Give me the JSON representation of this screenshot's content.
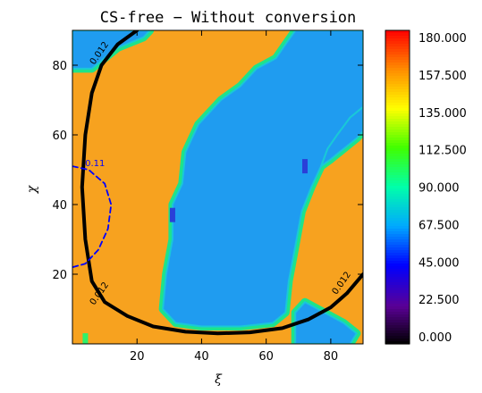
{
  "chart_data": {
    "type": "heatmap",
    "title": "CS-free − Without conversion",
    "xlabel": "ξ",
    "ylabel": "χ",
    "xlim": [
      0,
      90
    ],
    "ylim": [
      0,
      90
    ],
    "x_ticks": [
      {
        "value": 20,
        "label": "20"
      },
      {
        "value": 40,
        "label": "40"
      },
      {
        "value": 60,
        "label": "60"
      },
      {
        "value": 80,
        "label": "80"
      }
    ],
    "y_ticks": [
      {
        "value": 20,
        "label": "20"
      },
      {
        "value": 40,
        "label": "40"
      },
      {
        "value": 60,
        "label": "60"
      },
      {
        "value": 80,
        "label": "80"
      }
    ],
    "colorbar": {
      "min": 0,
      "max": 180,
      "labels": [
        "180.000",
        "157.500",
        "135.000",
        "112.500",
        "90.000",
        "67.500",
        "45.000",
        "22.500",
        "0.000"
      ],
      "colormap": "rainbow"
    },
    "field": {
      "background_value": 150,
      "regions": [
        {
          "name": "top-left-blue",
          "value": 60,
          "points": [
            [
              0,
              90
            ],
            [
              24,
              90
            ],
            [
              22,
              88
            ],
            [
              14,
              85
            ],
            [
              10,
              82
            ],
            [
              6,
              79
            ],
            [
              0,
              79
            ]
          ]
        },
        {
          "name": "central-blue",
          "value": 60,
          "points": [
            [
              69,
              90
            ],
            [
              66,
              86
            ],
            [
              63,
              82
            ],
            [
              57,
              79
            ],
            [
              52,
              74
            ],
            [
              46,
              70
            ],
            [
              39,
              63
            ],
            [
              35,
              55
            ],
            [
              34,
              46
            ],
            [
              31,
              40
            ],
            [
              31,
              30
            ],
            [
              29,
              20
            ],
            [
              28,
              10
            ],
            [
              32,
              6
            ],
            [
              40,
              5
            ],
            [
              52,
              5
            ],
            [
              62,
              6
            ],
            [
              66,
              9
            ],
            [
              67,
              18
            ],
            [
              69,
              28
            ],
            [
              71,
              38
            ],
            [
              74,
              45
            ],
            [
              77,
              51
            ],
            [
              79,
              56
            ],
            [
              82,
              60
            ],
            [
              86,
              65
            ],
            [
              90,
              68
            ],
            [
              90,
              90
            ]
          ]
        },
        {
          "name": "right-blue-patch",
          "value": 62,
          "points": [
            [
              90,
              68
            ],
            [
              86,
              65
            ],
            [
              82,
              60
            ],
            [
              79,
              56
            ],
            [
              77,
              51
            ],
            [
              80,
              53
            ],
            [
              84,
              56
            ],
            [
              88,
              59
            ],
            [
              90,
              61
            ]
          ]
        },
        {
          "name": "bottom-right-blue",
          "value": 60,
          "points": [
            [
              69,
              0
            ],
            [
              86,
              0
            ],
            [
              88,
              3
            ],
            [
              84,
              6
            ],
            [
              78,
              9
            ],
            [
              72,
              12
            ],
            [
              69,
              9
            ]
          ]
        }
      ],
      "spots": [
        {
          "x": 31,
          "y": 37,
          "value": 45
        },
        {
          "x": 72,
          "y": 51,
          "value": 40
        },
        {
          "x": 4,
          "y": 1,
          "value": 120
        }
      ]
    },
    "contours": [
      {
        "label": "0.012",
        "style": "solid",
        "color": "#000000",
        "points": [
          [
            20,
            90
          ],
          [
            14,
            86
          ],
          [
            9,
            80
          ],
          [
            6,
            72
          ],
          [
            4,
            60
          ],
          [
            3,
            45
          ],
          [
            4,
            30
          ],
          [
            6,
            18
          ],
          [
            10,
            12
          ],
          [
            17,
            8
          ],
          [
            25,
            5
          ],
          [
            35,
            3.5
          ],
          [
            45,
            3
          ],
          [
            55,
            3.3
          ],
          [
            65,
            4.5
          ],
          [
            73,
            7
          ],
          [
            80,
            10.5
          ],
          [
            85,
            14.5
          ],
          [
            90,
            20
          ]
        ],
        "label_positions": [
          {
            "x": 9,
            "y": 83
          },
          {
            "x": 9,
            "y": 14
          },
          {
            "x": 84,
            "y": 17
          }
        ]
      },
      {
        "label": "0.11",
        "style": "dashed",
        "color": "#0000ff",
        "points": [
          [
            0,
            51
          ],
          [
            5,
            50
          ],
          [
            10,
            46
          ],
          [
            12,
            40
          ],
          [
            11,
            33
          ],
          [
            8,
            27
          ],
          [
            4,
            23
          ],
          [
            0,
            22
          ]
        ],
        "label_positions": [
          {
            "x": 7,
            "y": 51
          }
        ]
      }
    ]
  }
}
